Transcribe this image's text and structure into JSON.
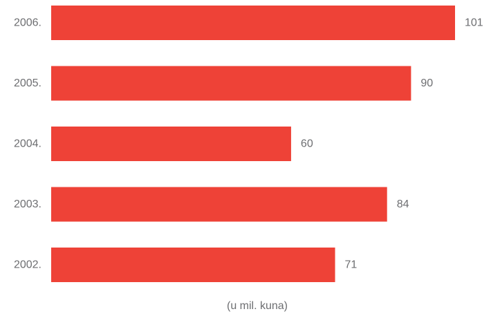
{
  "chart_data": {
    "type": "bar",
    "orientation": "horizontal",
    "categories": [
      "2006.",
      "2005.",
      "2004.",
      "2003.",
      "2002."
    ],
    "values": [
      101,
      90,
      60,
      84,
      71
    ],
    "value_labels": [
      "101",
      "90",
      "60",
      "84",
      "71"
    ],
    "unit_label": "(u mil. kuna)",
    "title": "",
    "xlabel": "",
    "ylabel": "",
    "xlim": [
      0,
      101
    ],
    "grid": false,
    "bar_color": "#ee4237",
    "text_color": "#6d6e71"
  }
}
